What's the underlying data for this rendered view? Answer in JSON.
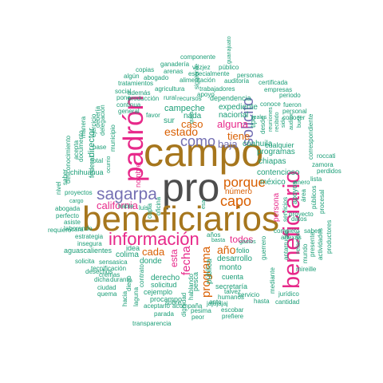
{
  "palette": {
    "teal": "#1b9e77",
    "gray": "#4d4d4d",
    "brown": "#a6761d",
    "magenta": "#e7298a",
    "purple": "#7570b3",
    "orange": "#d95f02",
    "gold": "#e6ab02",
    "green": "#66a61e"
  },
  "words": [
    {
      "text": "pro",
      "color": "gray"
    },
    {
      "text": "campo",
      "color": "brown"
    },
    {
      "text": "beneficiarios",
      "color": "brown"
    },
    {
      "text": "padrón",
      "color": "magenta"
    },
    {
      "text": "beneficiario",
      "color": "magenta"
    },
    {
      "text": "información",
      "color": "magenta"
    },
    {
      "text": "sagarpa",
      "color": "purple"
    },
    {
      "text": "solicito",
      "color": "purple"
    },
    {
      "text": "como",
      "color": "purple"
    },
    {
      "text": "estado",
      "color": "orange"
    },
    {
      "text": "porque",
      "color": "orange"
    },
    {
      "text": "capo",
      "color": "orange"
    },
    {
      "text": "california",
      "color": "magenta"
    },
    {
      "text": "tiene",
      "color": "orange"
    },
    {
      "text": "baja",
      "color": "purple"
    },
    {
      "text": "alguna",
      "color": "magenta"
    },
    {
      "text": "caso",
      "color": "orange"
    },
    {
      "text": "programa",
      "color": "orange"
    },
    {
      "text": "fecha",
      "color": "magenta"
    },
    {
      "text": "cada",
      "color": "orange"
    },
    {
      "text": "año",
      "color": "orange"
    },
    {
      "text": "todos",
      "color": "magenta"
    },
    {
      "text": "esta",
      "color": "magenta"
    },
    {
      "text": "número",
      "color": "orange"
    },
    {
      "text": "persona",
      "color": "magenta"
    },
    {
      "text": "director",
      "color": "teal"
    },
    {
      "text": "nombre",
      "color": "magenta"
    },
    {
      "text": "campeche",
      "color": "teal"
    },
    {
      "text": "nada",
      "color": "teal"
    },
    {
      "text": "sur",
      "color": "teal"
    },
    {
      "text": "expediente",
      "color": "teal"
    },
    {
      "text": "nacional",
      "color": "teal"
    },
    {
      "text": "coahuila",
      "color": "teal"
    },
    {
      "text": "tipo",
      "color": "teal"
    },
    {
      "text": "dependencia",
      "color": "teal"
    },
    {
      "text": "programas",
      "color": "teal"
    },
    {
      "text": "chiapas",
      "color": "teal"
    },
    {
      "text": "contencioso",
      "color": "teal"
    },
    {
      "text": "méxico",
      "color": "teal"
    },
    {
      "text": "desarrollo",
      "color": "teal"
    },
    {
      "text": "folio",
      "color": "teal"
    },
    {
      "text": "colima",
      "color": "teal"
    },
    {
      "text": "idea",
      "color": "teal"
    },
    {
      "text": "donde",
      "color": "teal"
    },
    {
      "text": "derecho",
      "color": "teal"
    },
    {
      "text": "solicitud",
      "color": "teal"
    },
    {
      "text": "cejemplo",
      "color": "teal"
    },
    {
      "text": "procampo",
      "color": "teal"
    },
    {
      "text": "pública",
      "color": "teal"
    },
    {
      "text": "monto",
      "color": "teal"
    },
    {
      "text": "cuenta",
      "color": "teal"
    },
    {
      "text": "secretaría",
      "color": "teal"
    },
    {
      "text": "años",
      "color": "teal"
    },
    {
      "text": "pesca",
      "color": "teal"
    },
    {
      "text": "aguascalientes",
      "color": "teal"
    },
    {
      "text": "chihuahua",
      "color": "teal"
    },
    {
      "text": "federal",
      "color": "teal"
    },
    {
      "text": "proyectos",
      "color": "teal"
    },
    {
      "text": "abogada",
      "color": "teal"
    },
    {
      "text": "servicios",
      "color": "teal"
    },
    {
      "text": "proyecto",
      "color": "teal"
    },
    {
      "text": "apoyos",
      "color": "teal"
    },
    {
      "text": "datos",
      "color": "teal"
    },
    {
      "text": "completo",
      "color": "teal"
    },
    {
      "text": "anexas",
      "color": "teal"
    },
    {
      "text": "saben",
      "color": "teal"
    },
    {
      "text": "cualquier",
      "color": "teal"
    },
    {
      "text": "agricultura",
      "color": "teal"
    },
    {
      "text": "rural",
      "color": "teal"
    },
    {
      "text": "recursos",
      "color": "teal"
    },
    {
      "text": "trabajadores",
      "color": "teal"
    },
    {
      "text": "alimentación",
      "color": "teal"
    },
    {
      "text": "ganadería",
      "color": "teal"
    },
    {
      "text": "especialmente",
      "color": "teal"
    },
    {
      "text": "personas",
      "color": "teal"
    },
    {
      "text": "auditoría",
      "color": "teal"
    },
    {
      "text": "tratamientos",
      "color": "teal"
    },
    {
      "text": "arenas",
      "color": "teal"
    },
    {
      "text": "copias",
      "color": "teal"
    },
    {
      "text": "abogado",
      "color": "teal"
    },
    {
      "text": "algún",
      "color": "teal"
    },
    {
      "text": "vezjez",
      "color": "teal"
    },
    {
      "text": "público",
      "color": "teal"
    },
    {
      "text": "componente",
      "color": "teal"
    },
    {
      "text": "guanajuato",
      "color": "teal"
    },
    {
      "text": "certificada",
      "color": "teal"
    },
    {
      "text": "empresas",
      "color": "teal"
    },
    {
      "text": "periodo",
      "color": "teal"
    },
    {
      "text": "siguiente",
      "color": "teal"
    },
    {
      "text": "apoyo",
      "color": "teal"
    },
    {
      "text": "social",
      "color": "teal"
    },
    {
      "text": "además",
      "color": "teal"
    },
    {
      "text": "pone",
      "color": "teal"
    },
    {
      "text": "producción",
      "color": "teal"
    },
    {
      "text": "continua",
      "color": "teal"
    },
    {
      "text": "general",
      "color": "teal"
    },
    {
      "text": "favor",
      "color": "teal"
    },
    {
      "text": "conoce",
      "color": "teal"
    },
    {
      "text": "fueron",
      "color": "teal"
    },
    {
      "text": "personal",
      "color": "teal"
    },
    {
      "text": "conocer",
      "color": "teal"
    },
    {
      "text": "correspondiente",
      "color": "teal"
    },
    {
      "text": "roccati",
      "color": "teal"
    },
    {
      "text": "zamora",
      "color": "teal"
    },
    {
      "text": "perdidos",
      "color": "teal"
    },
    {
      "text": "enero",
      "color": "teal"
    },
    {
      "text": "lista",
      "color": "teal"
    },
    {
      "text": "área",
      "color": "teal"
    },
    {
      "text": "públicos",
      "color": "teal"
    },
    {
      "text": "procesal",
      "color": "teal"
    },
    {
      "text": "productores",
      "color": "teal"
    },
    {
      "text": "actividades",
      "color": "teal"
    },
    {
      "text": "presente",
      "color": "teal"
    },
    {
      "text": "mundo",
      "color": "teal"
    },
    {
      "text": "mireille",
      "color": "teal"
    },
    {
      "text": "relación",
      "color": "teal"
    },
    {
      "text": "jurídico",
      "color": "teal"
    },
    {
      "text": "mediante",
      "color": "teal"
    },
    {
      "text": "cantidad",
      "color": "teal"
    },
    {
      "text": "hasta",
      "color": "teal"
    },
    {
      "text": "guerrero",
      "color": "teal"
    },
    {
      "text": "antarrugas",
      "color": "teal"
    },
    {
      "text": "estrategia",
      "color": "teal"
    },
    {
      "text": "insegura",
      "color": "teal"
    },
    {
      "text": "solicita",
      "color": "teal"
    },
    {
      "text": "desechos",
      "color": "teal"
    },
    {
      "text": "sensasica",
      "color": "teal"
    },
    {
      "text": "tecnificación",
      "color": "teal"
    },
    {
      "text": "cremas",
      "color": "teal"
    },
    {
      "text": "dicha",
      "color": "teal"
    },
    {
      "text": "durante",
      "color": "teal"
    },
    {
      "text": "ciudad",
      "color": "teal"
    },
    {
      "text": "quema",
      "color": "teal"
    },
    {
      "text": "asiste",
      "color": "teal"
    },
    {
      "text": "perfecto",
      "color": "teal"
    },
    {
      "text": "laborando",
      "color": "teal"
    },
    {
      "text": "requiero",
      "color": "teal"
    },
    {
      "text": "cara",
      "color": "teal"
    },
    {
      "text": "nivel",
      "color": "teal"
    },
    {
      "text": "saber",
      "color": "teal"
    },
    {
      "text": "desconocimiento",
      "color": "teal"
    },
    {
      "text": "acepta",
      "color": "teal"
    },
    {
      "text": "documento",
      "color": "teal"
    },
    {
      "text": "ejercicio",
      "color": "teal"
    },
    {
      "text": "manera",
      "color": "teal"
    },
    {
      "text": "debería",
      "color": "teal"
    },
    {
      "text": "delegación",
      "color": "teal"
    },
    {
      "text": "municipio",
      "color": "teal"
    },
    {
      "text": "base",
      "color": "teal"
    },
    {
      "text": "total",
      "color": "teal"
    },
    {
      "text": "hable",
      "color": "teal"
    },
    {
      "text": "luis",
      "color": "teal"
    },
    {
      "text": "copia",
      "color": "teal"
    },
    {
      "text": "oficina",
      "color": "teal"
    },
    {
      "text": "aceptarlo",
      "color": "teal"
    },
    {
      "text": "acompaña",
      "color": "teal"
    },
    {
      "text": "parada",
      "color": "teal"
    },
    {
      "text": "transparencia",
      "color": "teal"
    },
    {
      "text": "peor",
      "color": "teal"
    },
    {
      "text": "pesima",
      "color": "teal"
    },
    {
      "text": "dignidad",
      "color": "teal"
    },
    {
      "text": "escobar",
      "color": "teal"
    },
    {
      "text": "prefiere",
      "color": "teal"
    },
    {
      "text": "jajajajaj",
      "color": "teal"
    },
    {
      "text": "servicio",
      "color": "teal"
    },
    {
      "text": "humanos",
      "color": "teal"
    },
    {
      "text": "talvez",
      "color": "teal"
    },
    {
      "text": "ante",
      "color": "teal"
    },
    {
      "text": "laguna",
      "color": "teal"
    },
    {
      "text": "sobre",
      "color": "teal"
    },
    {
      "text": "hablando",
      "color": "teal"
    },
    {
      "text": "contrato",
      "color": "teal"
    },
    {
      "text": "hacia",
      "color": "teal"
    },
    {
      "text": "diego",
      "color": "teal"
    },
    {
      "text": "leales",
      "color": "teal"
    },
    {
      "text": "desde",
      "color": "teal"
    },
    {
      "text": "reuniones",
      "color": "teal"
    },
    {
      "text": "recibido",
      "color": "teal"
    },
    {
      "text": "sido",
      "color": "teal"
    },
    {
      "text": "auditor",
      "color": "teal"
    },
    {
      "text": "buen",
      "color": "teal"
    },
    {
      "text": "gastos",
      "color": "teal"
    },
    {
      "text": "basta",
      "color": "teal"
    },
    {
      "text": "quita",
      "color": "teal"
    },
    {
      "text": "esa",
      "color": "teal"
    },
    {
      "text": "cargo",
      "color": "teal"
    },
    {
      "text": "ocurrio",
      "color": "teal"
    }
  ]
}
